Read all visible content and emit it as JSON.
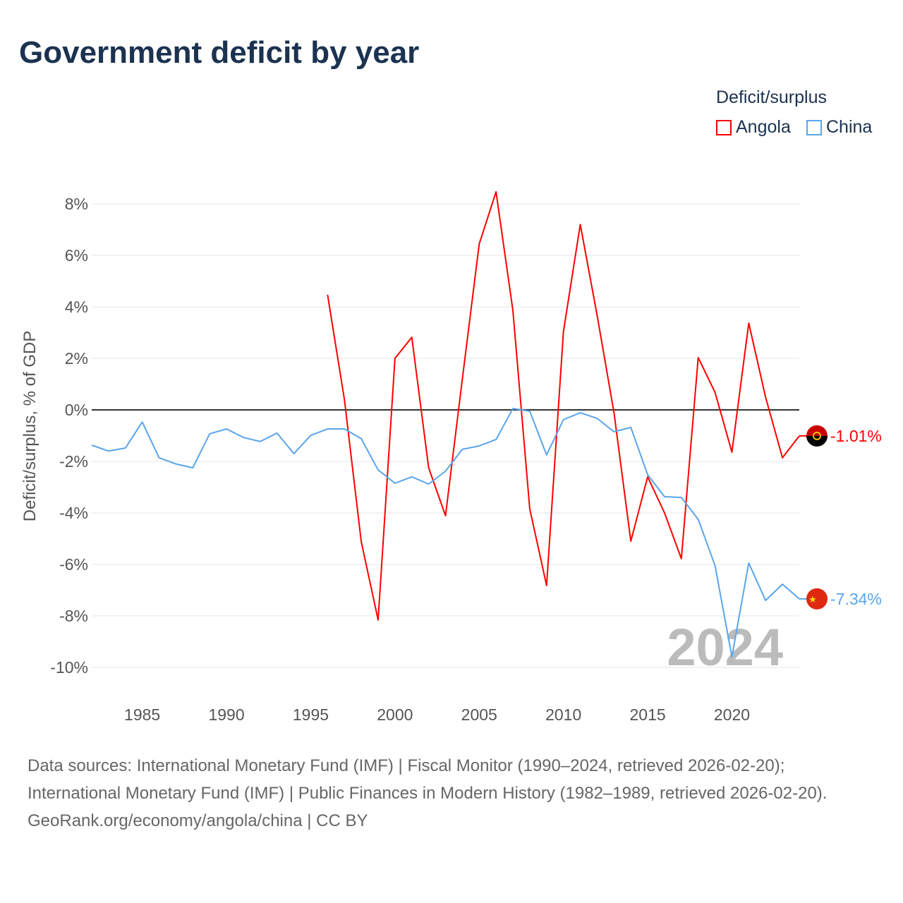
{
  "title": "Government deficit by year",
  "legend": {
    "title": "Deficit/surplus",
    "items": [
      {
        "label": "Angola",
        "color": "#ff0000"
      },
      {
        "label": "China",
        "color": "#5aa5ea"
      }
    ]
  },
  "year_watermark": "2024",
  "footer": {
    "sources": "Data sources: International Monetary Fund (IMF) | Fiscal Monitor (1990–2024, retrieved 2026-02-20); International Monetary Fund (IMF) | Public Finances in Modern History (1982–1989, retrieved 2026-02-20).",
    "credit": "GeoRank.org/economy/angola/china | CC BY"
  },
  "chart_data": {
    "type": "line",
    "title": "Government deficit by year",
    "xlabel": "",
    "ylabel": "Deficit/surplus, % of GDP",
    "xlim": [
      1982,
      2024
    ],
    "ylim": [
      -10.5,
      8.5
    ],
    "x_ticks": [
      1985,
      1990,
      1995,
      2000,
      2005,
      2010,
      2015,
      2020
    ],
    "y_ticks": [
      8,
      6,
      4,
      2,
      0,
      -2,
      -4,
      -6,
      -8,
      -10
    ],
    "y_tick_labels": [
      "8%",
      "6%",
      "4%",
      "2%",
      "0%",
      "-2%",
      "-4%",
      "-6%",
      "-8%",
      "-10%"
    ],
    "series": [
      {
        "name": "Angola",
        "color": "#ff0000",
        "end_label": "-1.01%",
        "start_year": 1996,
        "values": [
          4.47,
          0.4,
          -5.12,
          -8.16,
          2.0,
          2.82,
          -2.25,
          -4.11,
          1.2,
          6.44,
          8.47,
          3.86,
          -3.84,
          -6.82,
          3.04,
          7.2,
          3.67,
          -0.1,
          -5.1,
          -2.6,
          -4.0,
          -5.78,
          2.03,
          0.68,
          -1.64,
          3.37,
          0.49,
          -1.86,
          -1.01
        ]
      },
      {
        "name": "China",
        "color": "#5aa5ea",
        "end_label": "-7.34%",
        "start_year": 1982,
        "values": [
          -1.37,
          -1.6,
          -1.48,
          -0.47,
          -1.86,
          -2.1,
          -2.25,
          -0.93,
          -0.74,
          -1.07,
          -1.23,
          -0.9,
          -1.7,
          -0.99,
          -0.74,
          -0.74,
          -1.12,
          -2.33,
          -2.85,
          -2.6,
          -2.88,
          -2.38,
          -1.53,
          -1.4,
          -1.15,
          0.05,
          -0.05,
          -1.75,
          -0.38,
          -0.11,
          -0.33,
          -0.85,
          -0.68,
          -2.52,
          -3.37,
          -3.4,
          -4.25,
          -6.05,
          -9.59,
          -5.95,
          -7.4,
          -6.77,
          -7.34
        ]
      }
    ]
  }
}
